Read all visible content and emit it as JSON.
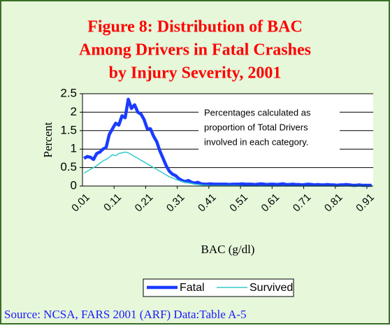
{
  "chart_data": {
    "type": "line",
    "title": [
      "Figure 8: Distribution of BAC",
      "Among Drivers in Fatal Crashes",
      "by Injury Severity, 2001"
    ],
    "xlabel": "BAC (g/dl)",
    "ylabel": "Percent",
    "annotation": [
      "Percentages calculated as",
      "proportion of Total Drivers",
      "involved in each category."
    ],
    "source": "Source: NCSA, FARS 2001 (ARF) Data:Table A-5",
    "categories": [
      "0.01",
      null,
      null,
      null,
      null,
      null,
      null,
      null,
      null,
      null,
      "0.11",
      null,
      null,
      null,
      null,
      null,
      null,
      null,
      null,
      null,
      "0.21",
      null,
      null,
      null,
      null,
      null,
      null,
      null,
      null,
      null,
      "0.31",
      null,
      null,
      null,
      null,
      null,
      null,
      null,
      null,
      null,
      "0.41",
      null,
      null,
      null,
      null,
      null,
      null,
      null,
      null,
      null,
      "0.51",
      null,
      null,
      null,
      null,
      null,
      null,
      null,
      null,
      null,
      "0.61",
      null,
      null,
      null,
      null,
      null,
      null,
      null,
      null,
      null,
      "0.71",
      null,
      null,
      null,
      null,
      null,
      null,
      null,
      null,
      null,
      "0.81",
      null,
      null,
      null,
      null,
      null,
      null,
      null,
      null,
      null,
      "0.91",
      null
    ],
    "series": [
      {
        "name": "Fatal",
        "color": "#1a3cff",
        "width": 4.5,
        "values": [
          0.75,
          0.8,
          0.78,
          0.72,
          0.88,
          0.92,
          1.0,
          1.05,
          1.4,
          1.55,
          1.7,
          1.65,
          1.9,
          1.85,
          2.35,
          2.1,
          2.2,
          2.0,
          1.95,
          1.8,
          1.55,
          1.55,
          1.35,
          1.2,
          0.95,
          0.75,
          0.55,
          0.4,
          0.32,
          0.28,
          0.2,
          0.15,
          0.12,
          0.15,
          0.1,
          0.08,
          0.1,
          0.06,
          0.05,
          0.05,
          0.06,
          0.05,
          0.05,
          0.05,
          0.05,
          0.05,
          0.04,
          0.05,
          0.05,
          0.05,
          0.06,
          0.05,
          0.05,
          0.05,
          0.04,
          0.05,
          0.06,
          0.05,
          0.04,
          0.05,
          0.05,
          0.04,
          0.05,
          0.06,
          0.04,
          0.04,
          0.05,
          0.04,
          0.04,
          0.03,
          0.04,
          0.05,
          0.04,
          0.03,
          0.04,
          0.03,
          0.03,
          0.04,
          0.03,
          0.03,
          0.02,
          0.03,
          0.03,
          0.04,
          0.03,
          0.02,
          0.02,
          0.03,
          0.02,
          0.02,
          0.02,
          0.02
        ]
      },
      {
        "name": "Survived",
        "color": "#33cccc",
        "width": 1.5,
        "values": [
          0.35,
          0.4,
          0.45,
          0.5,
          0.55,
          0.62,
          0.68,
          0.72,
          0.78,
          0.85,
          0.82,
          0.88,
          0.9,
          0.92,
          0.9,
          0.85,
          0.8,
          0.75,
          0.7,
          0.65,
          0.6,
          0.55,
          0.5,
          0.45,
          0.4,
          0.35,
          0.3,
          0.25,
          0.22,
          0.18,
          0.15,
          0.12,
          0.1,
          0.08,
          0.07,
          0.05,
          0.04,
          0.03,
          0.02,
          0.02,
          0.01,
          0.01,
          0.01,
          0.01,
          0.01,
          0.01,
          0.01,
          0.01,
          0.01,
          0.01,
          0,
          0,
          0,
          0,
          0,
          0,
          0,
          0,
          0,
          0,
          0,
          0,
          0,
          0,
          0,
          0,
          0,
          0,
          0,
          0,
          0,
          0,
          0,
          0,
          0,
          0,
          0,
          0,
          0,
          0,
          0,
          0,
          0,
          0,
          0,
          0,
          0,
          0,
          0,
          0,
          0,
          0
        ]
      }
    ],
    "ylim": [
      0,
      2.5
    ],
    "yticks": [
      0,
      0.5,
      1,
      1.5,
      2,
      2.5
    ],
    "grid": true
  }
}
